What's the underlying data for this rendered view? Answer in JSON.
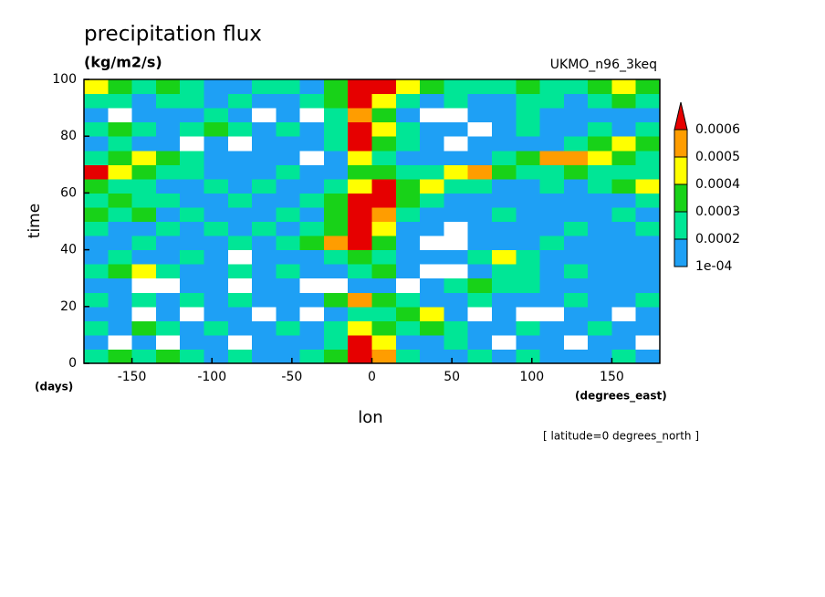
{
  "chart_data": {
    "type": "heatmap",
    "title": "precipitation flux",
    "subtitle": "(kg/m2/s)",
    "annotation": "UKMO_n96_3keq",
    "x_label": "lon",
    "x_unit": "(degrees_east)",
    "y_label": "time",
    "y_unit": "(days)",
    "footnote": "[ latitude=0 degrees_north ]",
    "xlim": [
      -180,
      180
    ],
    "xticks": [
      -150,
      -100,
      -50,
      0,
      50,
      100,
      150
    ],
    "ylim": [
      0,
      100
    ],
    "yticks": [
      0,
      20,
      40,
      60,
      80,
      100
    ],
    "x": [
      -172.5,
      -157.5,
      -142.5,
      -127.5,
      -112.5,
      -97.5,
      -82.5,
      -67.5,
      -52.5,
      -37.5,
      -22.5,
      -7.5,
      7.5,
      22.5,
      37.5,
      52.5,
      67.5,
      82.5,
      97.5,
      112.5,
      127.5,
      142.5,
      157.5,
      172.5
    ],
    "y": [
      2.5,
      7.5,
      12.5,
      17.5,
      22.5,
      27.5,
      32.5,
      37.5,
      42.5,
      47.5,
      52.5,
      57.5,
      62.5,
      67.5,
      72.5,
      77.5,
      82.5,
      87.5,
      92.5,
      97.5
    ],
    "z": [
      [
        0.00025,
        0.00035,
        0.00025,
        0.00035,
        0.00025,
        0.00015,
        0.00025,
        0.00015,
        0.00015,
        0.00025,
        0.00035,
        0.0007,
        0.00055,
        0.00025,
        0.00015,
        0.00015,
        0.00025,
        0.00015,
        0.00025,
        0.00015,
        0.00015,
        0.00015,
        0.00025,
        0.00015
      ],
      [
        0.00015,
        5e-05,
        0.00015,
        5e-05,
        0.00015,
        0.00015,
        5e-05,
        0.00015,
        0.00015,
        0.00015,
        0.00025,
        0.0007,
        0.00045,
        0.00015,
        0.00015,
        0.00025,
        0.00015,
        5e-05,
        0.00015,
        0.00015,
        5e-05,
        0.00015,
        0.00015,
        5e-05
      ],
      [
        0.00025,
        0.00015,
        0.00035,
        0.00025,
        0.00015,
        0.00025,
        0.00015,
        0.00015,
        0.00025,
        0.00015,
        0.00025,
        0.00045,
        0.00035,
        0.00025,
        0.00035,
        0.00025,
        0.00015,
        0.00015,
        0.00025,
        0.00015,
        0.00015,
        0.00025,
        0.00015,
        0.00015
      ],
      [
        0.00015,
        0.00015,
        5e-05,
        0.00015,
        5e-05,
        0.00015,
        0.00015,
        5e-05,
        0.00015,
        5e-05,
        0.00015,
        0.00025,
        0.00025,
        0.00035,
        0.00045,
        0.00015,
        5e-05,
        0.00015,
        5e-05,
        5e-05,
        0.00015,
        0.00015,
        5e-05,
        0.00015
      ],
      [
        0.00025,
        0.00015,
        0.00025,
        0.00015,
        0.00025,
        0.00015,
        0.00025,
        0.00015,
        0.00015,
        0.00015,
        0.00035,
        0.00055,
        0.00035,
        0.00025,
        0.00015,
        0.00015,
        0.00025,
        0.00015,
        0.00015,
        0.00015,
        0.00025,
        0.00015,
        0.00015,
        0.00025
      ],
      [
        0.00015,
        0.00015,
        5e-05,
        5e-05,
        0.00015,
        0.00015,
        5e-05,
        0.00015,
        0.00015,
        5e-05,
        5e-05,
        0.00015,
        0.00015,
        5e-05,
        0.00015,
        0.00025,
        0.00035,
        0.00025,
        0.00025,
        0.00015,
        0.00015,
        0.00015,
        0.00015,
        0.00015
      ],
      [
        0.00025,
        0.00035,
        0.00045,
        0.00025,
        0.00015,
        0.00015,
        0.00025,
        0.00015,
        0.00025,
        0.00015,
        0.00015,
        0.00025,
        0.00035,
        0.00015,
        5e-05,
        5e-05,
        0.00015,
        0.00025,
        0.00025,
        0.00015,
        0.00025,
        0.00015,
        0.00015,
        0.00015
      ],
      [
        0.00015,
        0.00025,
        0.00015,
        0.00015,
        0.00025,
        0.00015,
        5e-05,
        0.00015,
        0.00015,
        0.00015,
        0.00025,
        0.00035,
        0.00025,
        0.00015,
        0.00015,
        0.00015,
        0.00025,
        0.00045,
        0.00025,
        0.00015,
        0.00015,
        0.00015,
        0.00015,
        0.00015
      ],
      [
        0.00015,
        0.00015,
        0.00025,
        0.00015,
        0.00015,
        0.00015,
        0.00025,
        0.00015,
        0.00025,
        0.00035,
        0.00055,
        0.0007,
        0.00035,
        0.00015,
        5e-05,
        5e-05,
        0.00015,
        0.00015,
        0.00015,
        0.00025,
        0.00015,
        0.00015,
        0.00015,
        0.00015
      ],
      [
        0.00025,
        0.00015,
        0.00015,
        0.00025,
        0.00015,
        0.00025,
        0.00015,
        0.00025,
        0.00015,
        0.00025,
        0.00035,
        0.0007,
        0.00045,
        0.00015,
        0.00015,
        5e-05,
        0.00015,
        0.00015,
        0.00015,
        0.00015,
        0.00025,
        0.00015,
        0.00015,
        0.00025
      ],
      [
        0.00035,
        0.00025,
        0.00035,
        0.00015,
        0.00025,
        0.00015,
        0.00015,
        0.00015,
        0.00025,
        0.00015,
        0.00035,
        0.0007,
        0.00055,
        0.00025,
        0.00015,
        0.00015,
        0.00015,
        0.00025,
        0.00015,
        0.00015,
        0.00015,
        0.00015,
        0.00025,
        0.00015
      ],
      [
        0.00025,
        0.00035,
        0.00025,
        0.00025,
        0.00015,
        0.00015,
        0.00025,
        0.00015,
        0.00015,
        0.00025,
        0.00035,
        0.0007,
        0.0007,
        0.00035,
        0.00025,
        0.00015,
        0.00015,
        0.00015,
        0.00015,
        0.00015,
        0.00015,
        0.00015,
        0.00015,
        0.00025
      ],
      [
        0.00035,
        0.00025,
        0.00025,
        0.00015,
        0.00015,
        0.00025,
        0.00015,
        0.00025,
        0.00015,
        0.00015,
        0.00025,
        0.00045,
        0.0007,
        0.00035,
        0.00045,
        0.00025,
        0.00025,
        0.00015,
        0.00015,
        0.00025,
        0.00015,
        0.00025,
        0.00035,
        0.00045
      ],
      [
        0.0007,
        0.00045,
        0.00035,
        0.00025,
        0.00025,
        0.00015,
        0.00015,
        0.00015,
        0.00025,
        0.00015,
        0.00015,
        0.00035,
        0.00035,
        0.00025,
        0.00025,
        0.00045,
        0.00055,
        0.00035,
        0.00025,
        0.00025,
        0.00035,
        0.00025,
        0.00025,
        0.00025
      ],
      [
        0.00025,
        0.00035,
        0.00045,
        0.00035,
        0.00025,
        0.00015,
        0.00015,
        0.00015,
        0.00015,
        5e-05,
        0.00015,
        0.00045,
        0.00025,
        0.00015,
        0.00015,
        0.00015,
        0.00015,
        0.00025,
        0.00035,
        0.00055,
        0.00055,
        0.00045,
        0.00035,
        0.00025
      ],
      [
        0.00015,
        0.00025,
        0.00015,
        0.00015,
        5e-05,
        0.00015,
        5e-05,
        0.00015,
        0.00015,
        0.00015,
        0.00025,
        0.0007,
        0.00035,
        0.00025,
        0.00015,
        5e-05,
        0.00015,
        0.00015,
        0.00015,
        0.00015,
        0.00025,
        0.00035,
        0.00045,
        0.00035
      ],
      [
        0.00025,
        0.00035,
        0.00025,
        0.00015,
        0.00025,
        0.00035,
        0.00025,
        0.00015,
        0.00025,
        0.00015,
        0.00025,
        0.0007,
        0.00045,
        0.00025,
        0.00015,
        0.00015,
        5e-05,
        0.00015,
        0.00025,
        0.00015,
        0.00015,
        0.00025,
        0.00015,
        0.00025
      ],
      [
        0.00015,
        5e-05,
        0.00015,
        0.00015,
        0.00015,
        0.00025,
        0.00015,
        5e-05,
        0.00015,
        5e-05,
        0.00025,
        0.00055,
        0.00035,
        0.00015,
        5e-05,
        5e-05,
        0.00015,
        0.00015,
        0.00025,
        0.00015,
        0.00015,
        0.00015,
        0.00015,
        0.00015
      ],
      [
        0.00025,
        0.00025,
        0.00015,
        0.00025,
        0.00025,
        0.00015,
        0.00025,
        0.00015,
        0.00015,
        0.00025,
        0.00035,
        0.0007,
        0.00045,
        0.00025,
        0.00015,
        0.00025,
        0.00015,
        0.00015,
        0.00025,
        0.00025,
        0.00015,
        0.00025,
        0.00035,
        0.00025
      ],
      [
        0.00045,
        0.00035,
        0.00025,
        0.00035,
        0.00025,
        0.00015,
        0.00015,
        0.00025,
        0.00025,
        0.00015,
        0.00035,
        0.0007,
        0.0007,
        0.00045,
        0.00035,
        0.00025,
        0.00025,
        0.00025,
        0.00035,
        0.00025,
        0.00025,
        0.00035,
        0.00045,
        0.00035
      ]
    ],
    "colorbar": {
      "levels": [
        {
          "value": 0.0001,
          "label": "1e-04"
        },
        0.0002,
        0.0003,
        0.0004,
        0.0005,
        0.0006
      ],
      "colors": [
        "#1ea0f5",
        "#00e696",
        "#18d218",
        "#ffff00",
        "#ff9d00",
        "#e60000"
      ]
    }
  }
}
